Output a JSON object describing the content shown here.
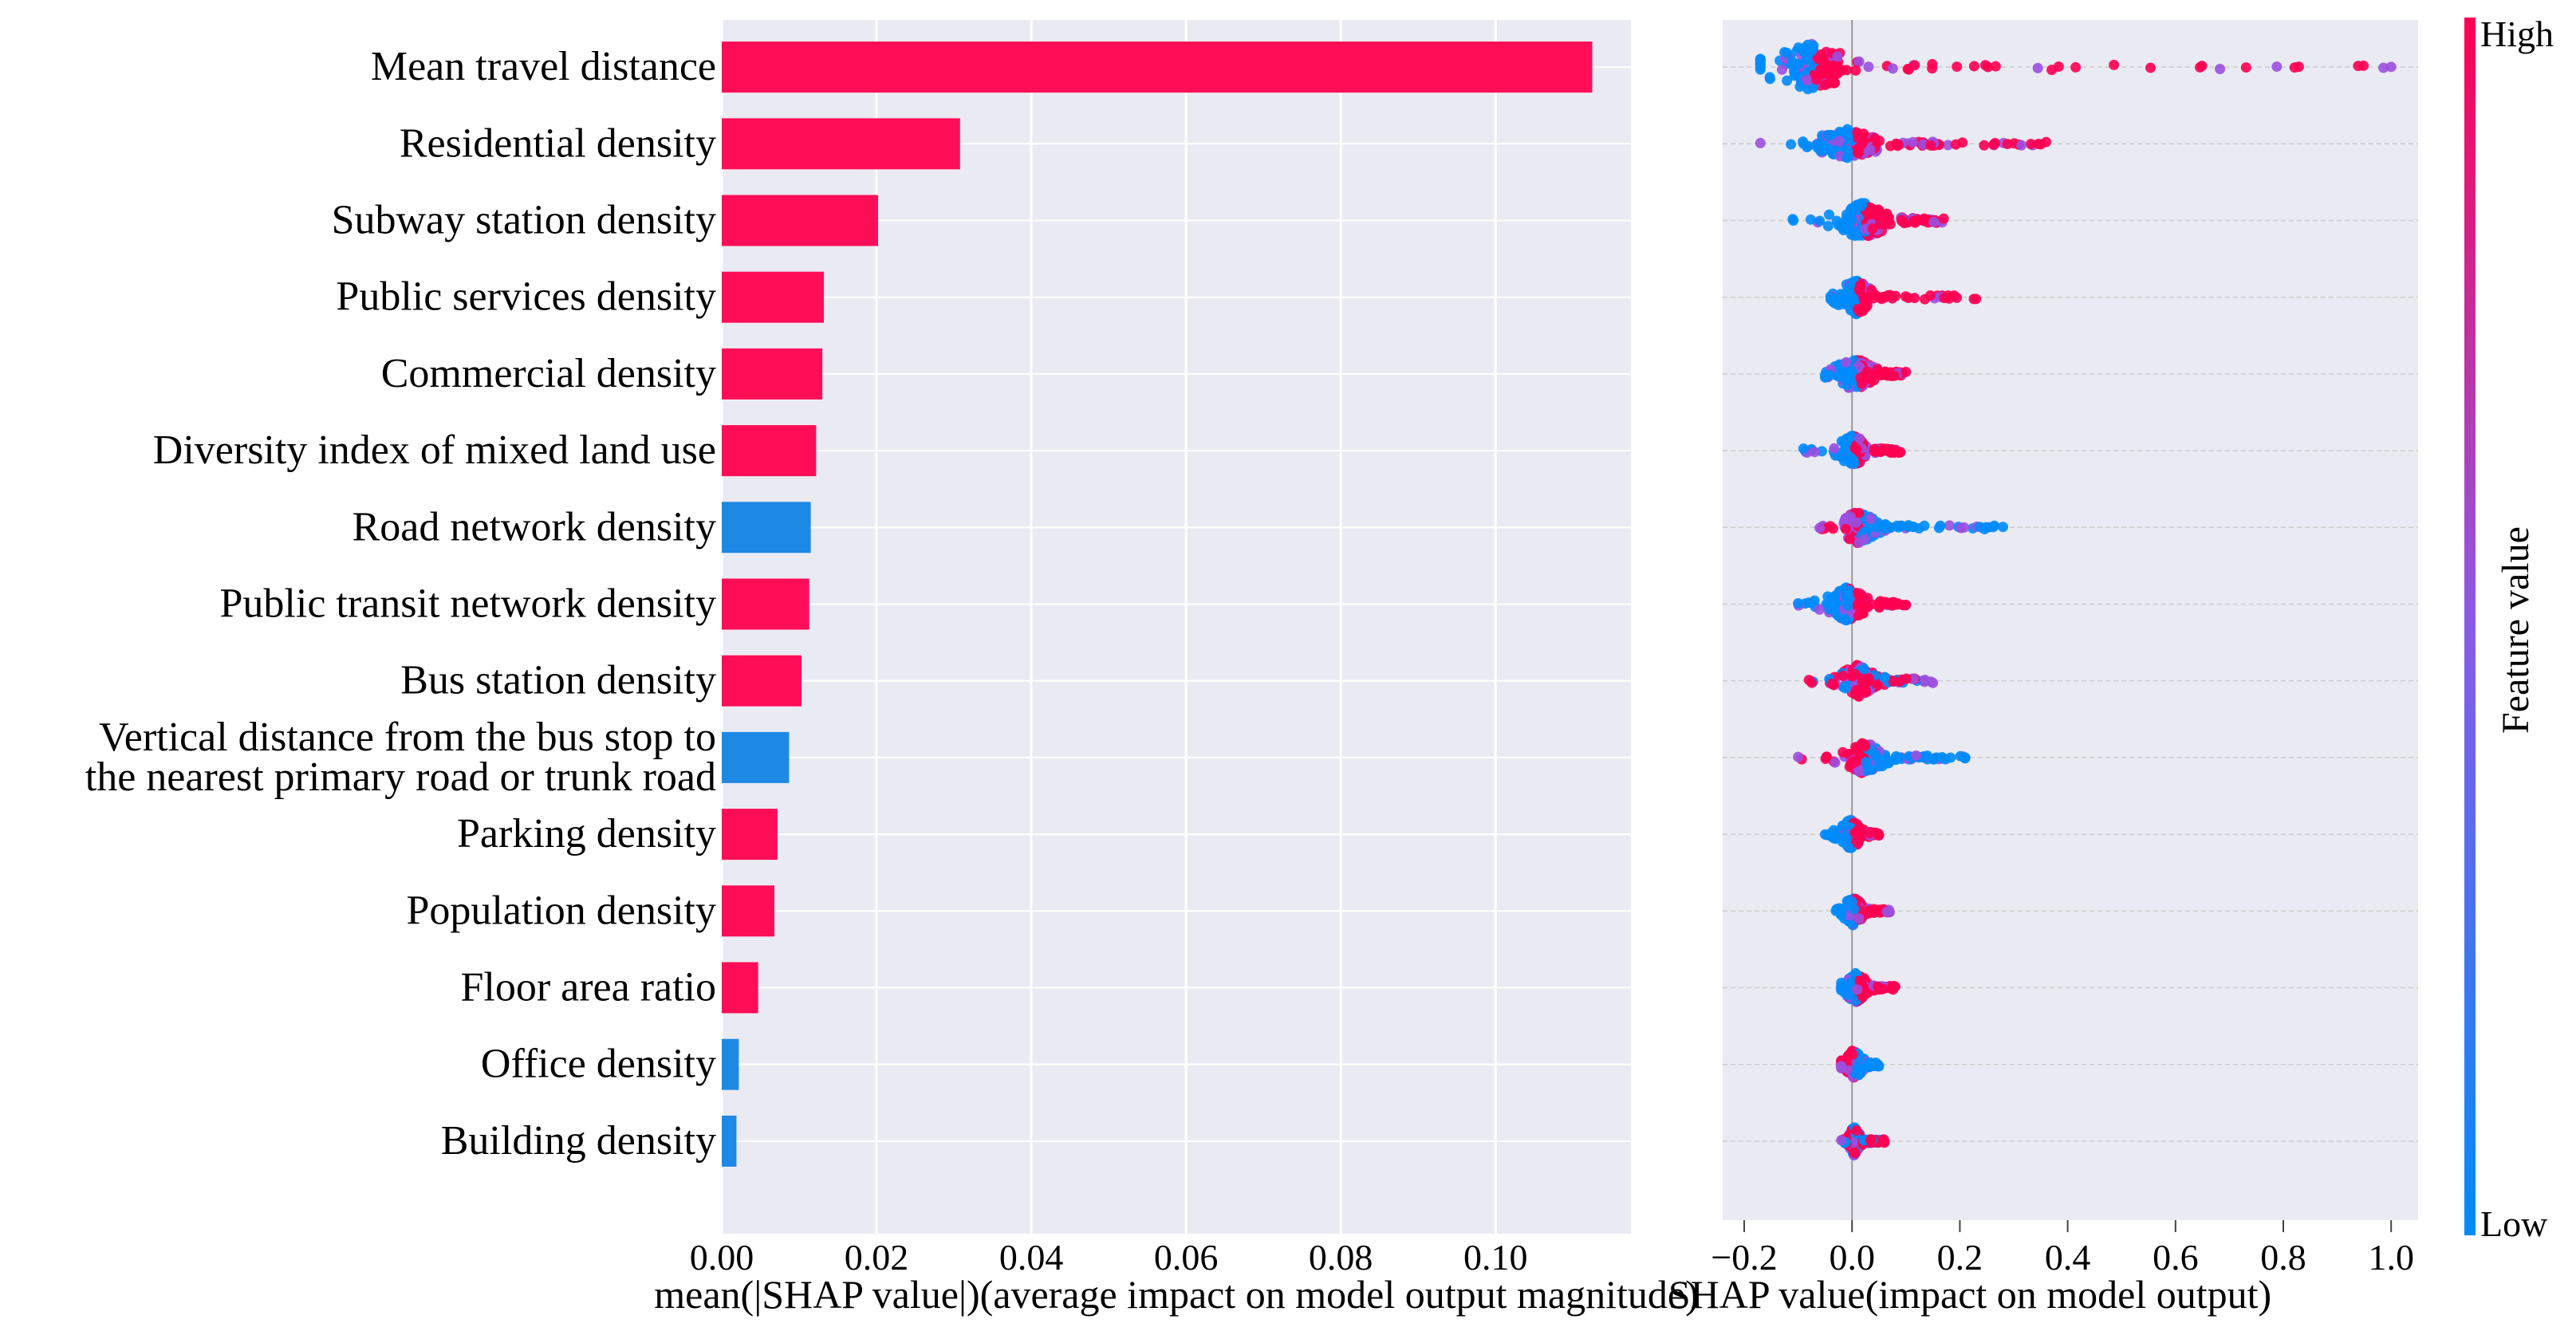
{
  "chart_data": [
    {
      "type": "bar",
      "orientation": "horizontal",
      "title": "",
      "xlabel": "mean(|SHAP value|)(average impact on model output magnitude)",
      "ylabel": "",
      "xlim": [
        0,
        0.1175
      ],
      "xticks": [
        {
          "value": 0.0,
          "label": "0.00"
        },
        {
          "value": 0.02,
          "label": "0.02"
        },
        {
          "value": 0.04,
          "label": "0.04"
        },
        {
          "value": 0.06,
          "label": "0.06"
        },
        {
          "value": 0.08,
          "label": "0.08"
        },
        {
          "value": 0.1,
          "label": "0.10"
        }
      ],
      "grid": true,
      "bars": [
        {
          "label": "Mean travel distance",
          "value": 0.1125,
          "color": "#ff0d57"
        },
        {
          "label": "Residential density",
          "value": 0.0308,
          "color": "#ff0d57"
        },
        {
          "label": "Subway station density",
          "value": 0.0202,
          "color": "#ff0d57"
        },
        {
          "label": "Public services density",
          "value": 0.0132,
          "color": "#ff0d57"
        },
        {
          "label": "Commercial density",
          "value": 0.013,
          "color": "#ff0d57"
        },
        {
          "label": "Diversity index of mixed land use",
          "value": 0.0122,
          "color": "#ff0d57"
        },
        {
          "label": "Road network density",
          "value": 0.0115,
          "color": "#1e88e5"
        },
        {
          "label": "Public transit network density",
          "value": 0.0113,
          "color": "#ff0d57"
        },
        {
          "label": "Bus station density",
          "value": 0.0103,
          "color": "#ff0d57"
        },
        {
          "label": "Vertical distance from the bus stop to the nearest primary road or trunk road",
          "label_lines": [
            "Vertical distance from the bus stop to",
            "the nearest primary road or trunk road"
          ],
          "value": 0.0087,
          "color": "#1e88e5"
        },
        {
          "label": "Parking density",
          "value": 0.0072,
          "color": "#ff0d57"
        },
        {
          "label": "Population density",
          "value": 0.0068,
          "color": "#ff0d57"
        },
        {
          "label": "Floor area ratio",
          "value": 0.0047,
          "color": "#ff0d57"
        },
        {
          "label": "Office density",
          "value": 0.0022,
          "color": "#1e88e5"
        },
        {
          "label": "Building density",
          "value": 0.0019,
          "color": "#1e88e5"
        }
      ]
    },
    {
      "type": "scatter",
      "subtype": "beeswarm",
      "title": "",
      "xlabel": "SHAP value(impact on model output)",
      "ylabel": "",
      "xlim": [
        -0.24,
        1.05
      ],
      "xticks": [
        {
          "value": -0.2,
          "label": "−0.2"
        },
        {
          "value": 0.0,
          "label": "0.0"
        },
        {
          "value": 0.2,
          "label": "0.2"
        },
        {
          "value": 0.4,
          "label": "0.4"
        },
        {
          "value": 0.6,
          "label": "0.6"
        },
        {
          "value": 0.8,
          "label": "0.8"
        },
        {
          "value": 1.0,
          "label": "1.0"
        }
      ],
      "colorbar": {
        "label": "Feature value",
        "high_label": "High",
        "low_label": "Low",
        "high_color": "#ff0051",
        "low_color": "#008bfb"
      },
      "rows": [
        {
          "feature": "Mean travel distance",
          "min": -0.17,
          "max": 1.0,
          "core": [
            -0.17,
            0.03
          ],
          "spread": 26,
          "trend": "high"
        },
        {
          "feature": "Residential density",
          "min": -0.17,
          "max": 0.36,
          "core": [
            -0.08,
            0.08
          ],
          "spread": 16,
          "trend": "high"
        },
        {
          "feature": "Subway station density",
          "min": -0.11,
          "max": 0.17,
          "core": [
            -0.04,
            0.09
          ],
          "spread": 20,
          "trend": "high"
        },
        {
          "feature": "Public services density",
          "min": -0.04,
          "max": 0.23,
          "core": [
            -0.03,
            0.05
          ],
          "spread": 20,
          "trend": "high"
        },
        {
          "feature": "Commercial density",
          "min": -0.05,
          "max": 0.1,
          "core": [
            -0.04,
            0.06
          ],
          "spread": 18,
          "trend": "high"
        },
        {
          "feature": "Diversity index of mixed land use",
          "min": -0.09,
          "max": 0.09,
          "core": [
            -0.03,
            0.04
          ],
          "spread": 18,
          "trend": "high"
        },
        {
          "feature": "Road network density",
          "min": -0.06,
          "max": 0.28,
          "core": [
            -0.03,
            0.06
          ],
          "spread": 18,
          "trend": "low"
        },
        {
          "feature": "Public transit network density",
          "min": -0.1,
          "max": 0.1,
          "core": [
            -0.06,
            0.05
          ],
          "spread": 18,
          "trend": "high"
        },
        {
          "feature": "Bus station density",
          "min": -0.08,
          "max": 0.15,
          "core": [
            -0.03,
            0.06
          ],
          "spread": 18,
          "trend": "mixed"
        },
        {
          "feature": "Vertical distance from the bus stop to the nearest primary road or trunk road",
          "min": -0.1,
          "max": 0.21,
          "core": [
            -0.03,
            0.08
          ],
          "spread": 18,
          "trend": "low"
        },
        {
          "feature": "Parking density",
          "min": -0.05,
          "max": 0.05,
          "core": [
            -0.03,
            0.03
          ],
          "spread": 16,
          "trend": "high"
        },
        {
          "feature": "Population density",
          "min": -0.03,
          "max": 0.07,
          "core": [
            -0.02,
            0.03
          ],
          "spread": 16,
          "trend": "high"
        },
        {
          "feature": "Floor area ratio",
          "min": -0.02,
          "max": 0.08,
          "core": [
            -0.02,
            0.04
          ],
          "spread": 16,
          "trend": "high"
        },
        {
          "feature": "Office density",
          "min": -0.02,
          "max": 0.05,
          "core": [
            -0.02,
            0.03
          ],
          "spread": 16,
          "trend": "low"
        },
        {
          "feature": "Building density",
          "min": -0.02,
          "max": 0.06,
          "core": [
            -0.01,
            0.02
          ],
          "spread": 16,
          "trend": "mixed"
        }
      ]
    }
  ]
}
